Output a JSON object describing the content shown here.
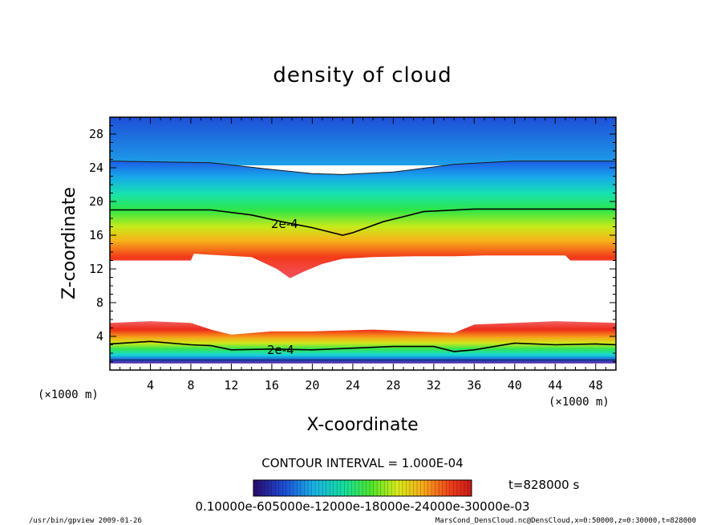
{
  "chart_data": {
    "type": "heatmap",
    "title": "density of cloud",
    "xlabel": "X-coordinate",
    "ylabel": "Z-coordinate",
    "x_unit": "(×1000 m)",
    "z_unit": "(×1000 m)",
    "xlim": [
      0,
      50
    ],
    "ylim": [
      0,
      30
    ],
    "x_ticks": [
      4,
      8,
      12,
      16,
      20,
      24,
      28,
      32,
      36,
      40,
      44,
      48
    ],
    "y_ticks": [
      4,
      8,
      12,
      16,
      20,
      24,
      28
    ],
    "contour_interval_text": "CONTOUR INTERVAL = 1.000E-04",
    "contour_label": "2e-4",
    "time_text": "t=828000 s",
    "colorbar_text": "0.10000e-605000e-12000e-18000e-24000e-30000e-03",
    "colormap": [
      "#2a0a6e",
      "#1d4cd6",
      "#19b4e6",
      "#16e09a",
      "#4fe62a",
      "#d8ec1a",
      "#f7a81a",
      "#f0401a",
      "#c81818"
    ],
    "upper_cloud": {
      "top_edge_x": [
        0,
        10,
        16,
        20,
        23,
        28,
        34,
        40,
        50
      ],
      "top_edge_z": [
        24.8,
        24.6,
        23.8,
        23.3,
        23.2,
        23.5,
        24.4,
        24.8,
        24.8
      ],
      "contour_2e4_x": [
        0,
        10,
        14,
        17,
        20,
        22,
        23,
        24,
        27,
        31,
        36,
        50
      ],
      "contour_2e4_z": [
        19.0,
        19.0,
        18.4,
        17.6,
        16.9,
        16.3,
        16.0,
        16.3,
        17.6,
        18.8,
        19.1,
        19.1
      ],
      "base_x": [
        0,
        8,
        8.3,
        14,
        16.5,
        17.8,
        19,
        21,
        23,
        26,
        30,
        34,
        37,
        45,
        45.5,
        50
      ],
      "base_z": [
        13.0,
        13.0,
        13.8,
        13.4,
        12.0,
        10.9,
        11.6,
        12.6,
        13.2,
        13.4,
        13.5,
        13.5,
        13.6,
        13.6,
        13.0,
        13.0
      ]
    },
    "lower_cloud": {
      "top_edge_x": [
        0,
        4,
        8,
        10,
        12,
        16,
        20,
        26,
        30,
        34,
        36,
        40,
        44,
        50
      ],
      "top_edge_z": [
        5.6,
        5.8,
        5.6,
        4.8,
        4.2,
        4.6,
        4.6,
        4.8,
        4.6,
        4.4,
        5.4,
        5.6,
        5.8,
        5.6
      ],
      "contour_2e4_x": [
        0,
        4,
        8,
        10,
        12,
        16,
        20,
        24,
        28,
        32,
        34,
        36,
        40,
        44,
        48,
        50
      ],
      "contour_2e4_z": [
        3.1,
        3.4,
        3.0,
        2.9,
        2.4,
        2.5,
        2.4,
        2.6,
        2.8,
        2.8,
        2.2,
        2.4,
        3.2,
        3.0,
        3.1,
        3.0
      ]
    }
  },
  "footer": {
    "left": "/usr/bin/gpview   2009-01-26",
    "right": "MarsCond_DensCloud.nc@DensCloud,x=0:50000,z=0:30000,t=828000"
  }
}
